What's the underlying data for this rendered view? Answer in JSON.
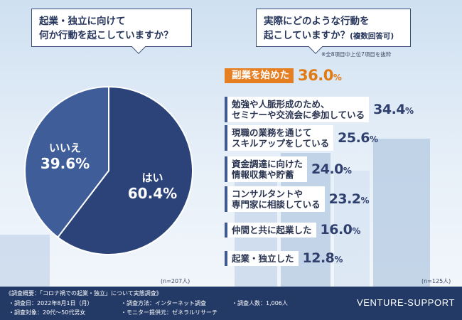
{
  "left_question": {
    "line1": "起業・独立に向けて",
    "line2": "何か行動を起こしていますか？"
  },
  "right_question": {
    "line1": "実際にどのような行動を",
    "line2": "起こしていますか？",
    "suffix": "(複数回答可)"
  },
  "right_note": "※全8項目中上位7項目を抜粋",
  "chart_data": [
    {
      "type": "pie",
      "title": "起業・独立に向けて何か行動を起こしていますか？",
      "categories": [
        "はい",
        "いいえ"
      ],
      "values": [
        60.4,
        39.6
      ],
      "value_labels": [
        "60.4%",
        "39.6%"
      ],
      "colors": [
        "#2c437a",
        "#3f5d99"
      ],
      "n_label": "(n=207人)"
    },
    {
      "type": "bar",
      "title": "実際にどのような行動を起こしていますか？(複数回答可)",
      "categories": [
        "副業を始めた",
        "勉強や人脈形成のため、\nセミナーや交流会に参加している",
        "現職の業務を通じて\nスキルアップをしている",
        "資金調達に向けた\n情報収集や貯蓄",
        "コンサルタントや\n専門家に相談している",
        "仲間と共に起業した",
        "起業・独立した"
      ],
      "values": [
        36.0,
        34.4,
        25.6,
        24.0,
        23.2,
        16.0,
        12.8
      ],
      "value_labels": [
        "36.0",
        "34.4",
        "25.6",
        "24.0",
        "23.2",
        "16.0",
        "12.8"
      ],
      "unit": "%",
      "highlight_color": "#e67e22",
      "n_label": "(n=125人)"
    }
  ],
  "footer": {
    "title": "《調査概要：「コロナ禍での起業・独立」について実態調査》",
    "date": "・調査日：2022年8月1日（月）",
    "target": "・調査対象：20代～50代男女",
    "method": "・調査方法：インターネット調査",
    "provider": "・モニター提供元：ゼネラルリサーチ",
    "count": "・調査人数：1,006人",
    "logo": "VENTURE-SUPPORT"
  }
}
